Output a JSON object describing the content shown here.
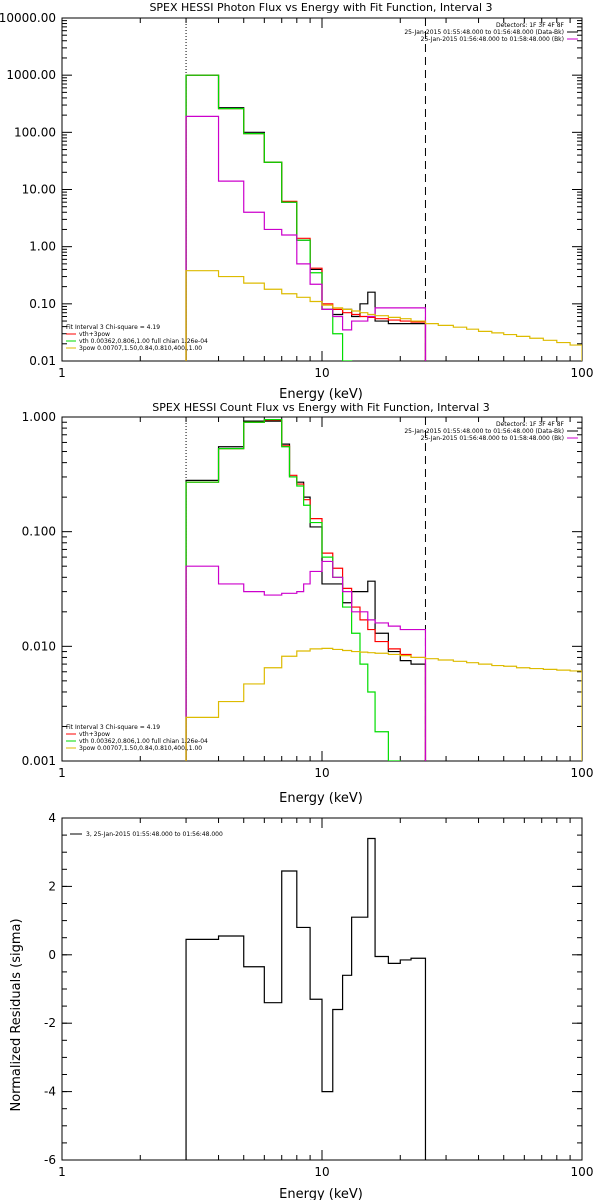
{
  "chart_data": [
    {
      "type": "line",
      "title": "SPEX HESSI Photon Flux vs Energy with Fit Function, Interval 3",
      "xlabel": "Energy (keV)",
      "ylabel": "",
      "xscale": "log",
      "yscale": "log",
      "xlim": [
        1,
        100
      ],
      "ylim": [
        0.01,
        10000
      ],
      "xticks": [
        {
          "v": 1,
          "label": "1"
        },
        {
          "v": 10,
          "label": "10"
        },
        {
          "v": 100,
          "label": "100"
        }
      ],
      "yticks": [
        {
          "v": 0.01,
          "label": "0.01"
        },
        {
          "v": 0.1,
          "label": "0.10"
        },
        {
          "v": 1,
          "label": "1.00"
        },
        {
          "v": 10,
          "label": "10.00"
        },
        {
          "v": 100,
          "label": "100.00"
        },
        {
          "v": 1000,
          "label": "1000.00"
        },
        {
          "v": 10000,
          "label": "10000.00"
        }
      ],
      "vlines": [
        {
          "x": 3,
          "style": "dotted"
        },
        {
          "x": 25,
          "style": "dashed"
        }
      ],
      "legend_top": [
        "Detectors: 1F 3F 4F 8F",
        "25-Jan-2015 01:55:48.000 to 01:56:48.000 (Data-Bk)",
        "25-Jan-2015 01:56:48.000 to 01:58:48.000 (Bk)"
      ],
      "legend_top_colors": [
        "",
        "#000000",
        "#cc00cc"
      ],
      "legend_bottom": [
        "Fit Interval 3   Chi-square = 4.19",
        "vth+3pow",
        "vth 0.00362,0.806,1.00   full chian 1.26e-04",
        "3pow 0.00707,1.50,0.84,0.810,400.,1.00"
      ],
      "legend_bottom_colors": [
        "",
        "#ff0000",
        "#00dd00",
        "#ddbb00"
      ],
      "series": [
        {
          "name": "Data-Bk",
          "color": "#000000",
          "edges": [
            3,
            4,
            5,
            6,
            7,
            7.5,
            8,
            8.5,
            9,
            10,
            11,
            12,
            13,
            14,
            15,
            16,
            18,
            20,
            22,
            25
          ],
          "values": [
            1000,
            270,
            100,
            30,
            6,
            6,
            1.3,
            1.3,
            0.4,
            0.08,
            0.065,
            0.08,
            0.06,
            0.1,
            0.16,
            0.05,
            0.045,
            0.045,
            0.045
          ]
        },
        {
          "name": "vth+3pow",
          "color": "#ff0000",
          "edges": [
            3,
            4,
            5,
            6,
            7,
            7.5,
            8,
            8.5,
            9,
            10,
            11,
            12,
            13,
            14,
            15,
            16,
            18,
            20,
            22,
            25
          ],
          "values": [
            1000,
            260,
            95,
            30,
            6.2,
            6.2,
            1.4,
            1.4,
            0.42,
            0.1,
            0.08,
            0.07,
            0.065,
            0.06,
            0.058,
            0.055,
            0.052,
            0.05,
            0.048
          ]
        },
        {
          "name": "vth",
          "color": "#00dd00",
          "edges": [
            3,
            4,
            5,
            6,
            7,
            7.5,
            8,
            8.5,
            9,
            10,
            11,
            12,
            13
          ],
          "values": [
            1000,
            260,
            95,
            30,
            6,
            6,
            1.3,
            1.3,
            0.35,
            0.08,
            0.03,
            0.01
          ]
        },
        {
          "name": "Bk",
          "color": "#cc00cc",
          "edges": [
            3,
            4,
            5,
            6,
            7,
            7.5,
            8,
            8.5,
            9,
            10,
            11,
            12,
            13,
            14,
            15,
            16,
            18,
            20,
            22,
            25
          ],
          "values": [
            190,
            14,
            4,
            2,
            1.6,
            1.6,
            0.5,
            0.5,
            0.22,
            0.08,
            0.06,
            0.035,
            0.05,
            0.05,
            0.06,
            0.085,
            0.085,
            0.085,
            0.085
          ]
        },
        {
          "name": "3pow",
          "color": "#ddbb00",
          "edges": [
            3,
            4,
            5,
            6,
            7,
            8,
            9,
            10,
            11,
            12,
            13,
            14,
            15,
            16,
            18,
            20,
            22,
            25,
            28,
            32,
            36,
            40,
            45,
            50,
            56,
            63,
            71,
            80,
            90,
            100
          ],
          "values": [
            0.38,
            0.3,
            0.23,
            0.18,
            0.15,
            0.13,
            0.11,
            0.095,
            0.085,
            0.08,
            0.075,
            0.07,
            0.065,
            0.062,
            0.058,
            0.055,
            0.05,
            0.045,
            0.042,
            0.039,
            0.036,
            0.033,
            0.031,
            0.029,
            0.027,
            0.025,
            0.023,
            0.021,
            0.019
          ]
        }
      ]
    },
    {
      "type": "line",
      "title": "SPEX HESSI Count Flux vs Energy with Fit Function, Interval 3",
      "xlabel": "Energy (keV)",
      "ylabel": "",
      "xscale": "log",
      "yscale": "log",
      "xlim": [
        1,
        100
      ],
      "ylim": [
        0.001,
        1
      ],
      "xticks": [
        {
          "v": 1,
          "label": "1"
        },
        {
          "v": 10,
          "label": "10"
        },
        {
          "v": 100,
          "label": "100"
        }
      ],
      "yticks": [
        {
          "v": 0.001,
          "label": "0.001"
        },
        {
          "v": 0.01,
          "label": "0.010"
        },
        {
          "v": 0.1,
          "label": "0.100"
        },
        {
          "v": 1,
          "label": "1.000"
        }
      ],
      "vlines": [
        {
          "x": 3,
          "style": "dotted"
        },
        {
          "x": 25,
          "style": "dashed"
        }
      ],
      "legend_top": [
        "Detectors: 1F 3F 4F 8F",
        "25-Jan-2015 01:55:48.000 to 01:56:48.000 (Data-Bk)",
        "25-Jan-2015 01:56:48.000 to 01:58:48.000 (Bk)"
      ],
      "legend_top_colors": [
        "",
        "#000000",
        "#cc00cc"
      ],
      "legend_bottom": [
        "Fit Interval 3   Chi-square = 4.19",
        "vth+3pow",
        "vth 0.00362,0.806,1.00   full chian 1.26e-04",
        "3pow 0.00707,1.50,0.84,0.810,400.,1.00"
      ],
      "legend_bottom_colors": [
        "",
        "#ff0000",
        "#00dd00",
        "#ddbb00"
      ],
      "series": [
        {
          "name": "Data-Bk",
          "color": "#000000",
          "edges": [
            3,
            4,
            5,
            6,
            7,
            7.5,
            8,
            8.5,
            9,
            10,
            11,
            12,
            13,
            14,
            15,
            16,
            18,
            20,
            22,
            25
          ],
          "values": [
            0.28,
            0.55,
            0.92,
            0.92,
            0.58,
            0.3,
            0.27,
            0.2,
            0.11,
            0.035,
            0.035,
            0.024,
            0.03,
            0.03,
            0.037,
            0.013,
            0.009,
            0.0075,
            0.007
          ]
        },
        {
          "name": "vth+3pow",
          "color": "#ff0000",
          "edges": [
            3,
            4,
            5,
            6,
            7,
            7.5,
            8,
            8.5,
            9,
            10,
            11,
            12,
            13,
            14,
            15,
            16,
            18,
            20,
            22,
            25
          ],
          "values": [
            0.27,
            0.53,
            0.9,
            0.94,
            0.56,
            0.31,
            0.26,
            0.19,
            0.13,
            0.065,
            0.048,
            0.032,
            0.022,
            0.017,
            0.014,
            0.011,
            0.0095,
            0.0085,
            0.008
          ]
        },
        {
          "name": "vth",
          "color": "#00dd00",
          "edges": [
            3,
            4,
            5,
            6,
            7,
            7.5,
            8,
            8.5,
            9,
            10,
            11,
            12,
            13,
            14,
            15,
            16,
            18,
            20
          ],
          "values": [
            0.27,
            0.53,
            0.9,
            0.95,
            0.55,
            0.3,
            0.25,
            0.17,
            0.12,
            0.06,
            0.04,
            0.022,
            0.013,
            0.007,
            0.004,
            0.0018,
            0.001
          ]
        },
        {
          "name": "Bk",
          "color": "#cc00cc",
          "edges": [
            3,
            4,
            5,
            6,
            7,
            7.5,
            8,
            8.5,
            9,
            10,
            11,
            12,
            13,
            14,
            15,
            16,
            18,
            20,
            22,
            25
          ],
          "values": [
            0.05,
            0.035,
            0.03,
            0.028,
            0.029,
            0.029,
            0.03,
            0.035,
            0.045,
            0.055,
            0.04,
            0.03,
            0.02,
            0.02,
            0.017,
            0.016,
            0.015,
            0.014,
            0.014
          ]
        },
        {
          "name": "3pow",
          "color": "#ddbb00",
          "edges": [
            3,
            4,
            5,
            6,
            7,
            8,
            9,
            10,
            11,
            12,
            13,
            14,
            15,
            16,
            18,
            20,
            22,
            25,
            28,
            32,
            36,
            40,
            45,
            50,
            56,
            63,
            71,
            80,
            90,
            100
          ],
          "values": [
            0.0024,
            0.0033,
            0.0047,
            0.0065,
            0.0082,
            0.0091,
            0.0095,
            0.0096,
            0.0094,
            0.0092,
            0.009,
            0.0089,
            0.0088,
            0.0087,
            0.0085,
            0.0083,
            0.008,
            0.0078,
            0.0076,
            0.0074,
            0.0072,
            0.007,
            0.0068,
            0.0067,
            0.0065,
            0.0064,
            0.0063,
            0.0062,
            0.0061
          ]
        }
      ]
    },
    {
      "type": "line",
      "title": "",
      "xlabel": "Energy (keV)",
      "ylabel": "Normalized Residuals (sigma)",
      "xscale": "log",
      "yscale": "linear",
      "xlim": [
        1,
        100
      ],
      "ylim": [
        -6,
        4
      ],
      "xticks": [
        {
          "v": 1,
          "label": "1"
        },
        {
          "v": 10,
          "label": "10"
        },
        {
          "v": 100,
          "label": "100"
        }
      ],
      "yticks": [
        {
          "v": -6,
          "label": "-6"
        },
        {
          "v": -4,
          "label": "-4"
        },
        {
          "v": -2,
          "label": "-2"
        },
        {
          "v": 0,
          "label": "0"
        },
        {
          "v": 2,
          "label": "2"
        },
        {
          "v": 4,
          "label": "4"
        }
      ],
      "vlines": [],
      "legend_top": [],
      "legend_top_colors": [],
      "legend_bottom": [],
      "legend_bottom_colors": [],
      "legend_left": [
        "3, 25-Jan-2015 01:55:48.000 to 01:56:48.000"
      ],
      "series": [
        {
          "name": "3, 25-Jan-2015 01:55:48.000 to 01:56:48.000",
          "color": "#000000",
          "edges": [
            3,
            4,
            5,
            6,
            7,
            7.5,
            8,
            8.5,
            9,
            10,
            11,
            12,
            13,
            14,
            15,
            16,
            18,
            20,
            22,
            25
          ],
          "values": [
            0.45,
            0.55,
            -0.35,
            -1.4,
            2.45,
            2.45,
            0.8,
            0.8,
            -1.3,
            -4.0,
            -1.6,
            -0.6,
            1.1,
            1.1,
            3.4,
            -0.05,
            -0.25,
            -0.15,
            -0.1
          ],
          "drop_to_floor": true
        }
      ]
    }
  ]
}
